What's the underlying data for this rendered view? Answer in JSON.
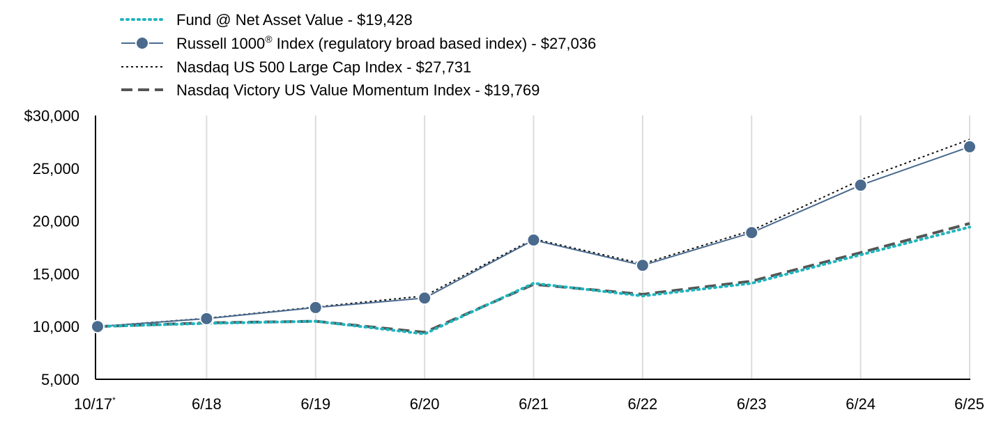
{
  "chart_data": {
    "type": "line",
    "categories": [
      "10/17",
      "6/18",
      "6/19",
      "6/20",
      "6/21",
      "6/22",
      "6/23",
      "6/24",
      "6/25"
    ],
    "first_category_footnote": "*",
    "ylim": [
      5000,
      30000
    ],
    "yticks": [
      {
        "value": 30000,
        "label": "$30,000"
      },
      {
        "value": 25000,
        "label": "25,000"
      },
      {
        "value": 20000,
        "label": "20,000"
      },
      {
        "value": 15000,
        "label": "15,000"
      },
      {
        "value": 10000,
        "label": "10,000"
      },
      {
        "value": 5000,
        "label": "5,000"
      }
    ],
    "grid": "vertical",
    "legend_position": "top-left",
    "series": [
      {
        "name": "Fund @ Net Asset Value - $19,428",
        "legend_label": "Fund @ Net Asset Value - $19,428",
        "values": [
          10000,
          10300,
          10500,
          9300,
          14100,
          12900,
          14100,
          16800,
          19428
        ],
        "color": "#1fb5bd",
        "style": "dotted",
        "markers": false
      },
      {
        "name": "Russell 1000® Index (regulatory broad based index) - $27,036",
        "legend_label_main": "Russell 1000",
        "legend_label_sup": "®",
        "legend_label_rest": " Index (regulatory broad based index) - $27,036",
        "values": [
          10000,
          10750,
          11800,
          12700,
          18200,
          15800,
          18900,
          23400,
          27036
        ],
        "color": "#4a6a8e",
        "style": "solid",
        "markers": true
      },
      {
        "name": "Nasdaq US 500 Large Cap Index - $27,731",
        "legend_label": "Nasdaq US 500 Large Cap Index - $27,731",
        "values": [
          10000,
          10780,
          11850,
          12900,
          18300,
          15950,
          19100,
          23900,
          27731
        ],
        "color": "#111111",
        "style": "fine-dotted",
        "markers": false
      },
      {
        "name": "Nasdaq Victory US Value Momentum Index - $19,769",
        "legend_label": "Nasdaq Victory US Value Momentum Index - $19,769",
        "values": [
          10000,
          10350,
          10500,
          9450,
          14000,
          13050,
          14300,
          17000,
          19769
        ],
        "color": "#555555",
        "style": "dashed",
        "markers": false
      }
    ]
  }
}
